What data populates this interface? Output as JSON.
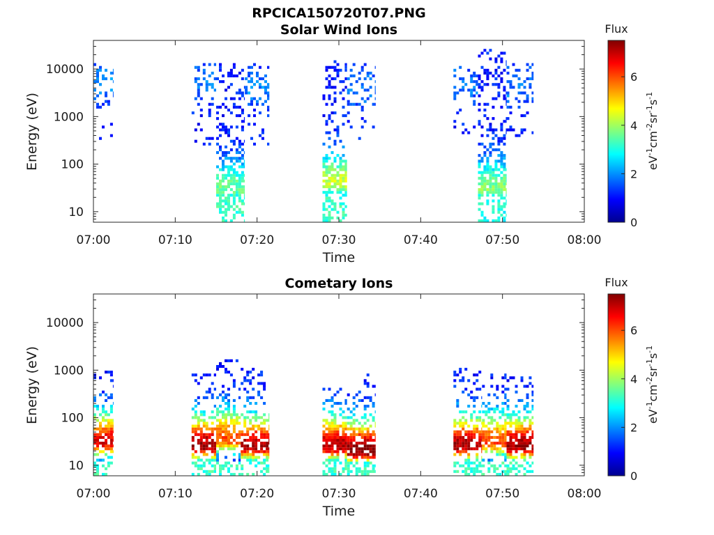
{
  "figure": {
    "title": "RPCICA150720T07.PNG"
  },
  "colorbar": {
    "label": "Flux",
    "unit_base": "eV",
    "unit_exp1": "-1",
    "unit_cm": "cm",
    "unit_exp2": "-2",
    "unit_sr": "sr",
    "unit_exp3": "-1",
    "unit_s": "s",
    "unit_exp4": "-1",
    "ticks": [
      "0",
      "2",
      "4",
      "6"
    ],
    "range": [
      0,
      7.5
    ],
    "colormap": "jet"
  },
  "chart_data": [
    {
      "type": "heatmap",
      "title": "Solar Wind Ions",
      "xlabel": "Time",
      "ylabel": "Energy (eV)",
      "x_ticks": [
        "07:00",
        "07:10",
        "07:20",
        "07:30",
        "07:40",
        "07:50",
        "08:00"
      ],
      "x_range_min": [
        0,
        60
      ],
      "y_ticks": [
        "10",
        "100",
        "1000",
        "10000"
      ],
      "y_scale": "log",
      "y_range": [
        6,
        40000
      ],
      "z_range": [
        0,
        7.5
      ],
      "bursts": [
        {
          "start_min": 0.0,
          "end_min": 2.4,
          "emin": 250,
          "emax": 16000,
          "peak_energy": 4000,
          "peak_flux": 2.0,
          "low_emax": null,
          "low_flux": 0,
          "density": 0.35
        },
        {
          "start_min": 12.0,
          "end_min": 15.0,
          "emin": 250,
          "emax": 13000,
          "peak_energy": 4000,
          "peak_flux": 1.8,
          "low_emax": null,
          "low_flux": 0,
          "density": 0.35
        },
        {
          "start_min": 15.0,
          "end_min": 18.5,
          "emin": 6,
          "emax": 14000,
          "peak_energy": 30,
          "peak_flux": 3.6,
          "low_emax": 20,
          "low_flux": 3.2,
          "density": 0.85
        },
        {
          "start_min": 18.5,
          "end_min": 21.5,
          "emin": 250,
          "emax": 13000,
          "peak_energy": 3000,
          "peak_flux": 1.9,
          "low_emax": null,
          "low_flux": 0,
          "density": 0.35
        },
        {
          "start_min": 28.0,
          "end_min": 31.0,
          "emin": 6,
          "emax": 15000,
          "peak_energy": 40,
          "peak_flux": 4.3,
          "low_emax": 20,
          "low_flux": 3.2,
          "density": 0.85
        },
        {
          "start_min": 31.0,
          "end_min": 34.5,
          "emin": 300,
          "emax": 13000,
          "peak_energy": 3000,
          "peak_flux": 1.8,
          "low_emax": null,
          "low_flux": 0,
          "density": 0.35
        },
        {
          "start_min": 44.0,
          "end_min": 47.0,
          "emin": 400,
          "emax": 14000,
          "peak_energy": 4000,
          "peak_flux": 1.8,
          "low_emax": null,
          "low_flux": 0,
          "density": 0.35
        },
        {
          "start_min": 47.0,
          "end_min": 50.5,
          "emin": 6,
          "emax": 25000,
          "peak_energy": 30,
          "peak_flux": 3.8,
          "low_emax": 20,
          "low_flux": 3.0,
          "density": 0.85
        },
        {
          "start_min": 50.5,
          "end_min": 53.8,
          "emin": 300,
          "emax": 13000,
          "peak_energy": 3000,
          "peak_flux": 1.8,
          "low_emax": null,
          "low_flux": 0,
          "density": 0.35
        }
      ]
    },
    {
      "type": "heatmap",
      "title": "Cometary Ions",
      "xlabel": "Time",
      "ylabel": "Energy (eV)",
      "x_ticks": [
        "07:00",
        "07:10",
        "07:20",
        "07:30",
        "07:40",
        "07:50",
        "08:00"
      ],
      "x_range_min": [
        0,
        60
      ],
      "y_ticks": [
        "10",
        "100",
        "1000",
        "10000"
      ],
      "y_scale": "log",
      "y_range": [
        6,
        40000
      ],
      "z_range": [
        0,
        7.5
      ],
      "bursts": [
        {
          "start_min": 0.0,
          "end_min": 2.4,
          "emin": 6,
          "emax": 1000,
          "peak_energy": 30,
          "peak_flux": 6.8,
          "low_emax": 12,
          "low_flux": 3.2,
          "density": 0.75
        },
        {
          "start_min": 12.0,
          "end_min": 15.0,
          "emin": 6,
          "emax": 800,
          "peak_energy": 25,
          "peak_flux": 7.3,
          "low_emax": 12,
          "low_flux": 3.2,
          "density": 0.75
        },
        {
          "start_min": 15.0,
          "end_min": 18.0,
          "emin": 6,
          "emax": 1800,
          "peak_energy": 35,
          "peak_flux": 6.0,
          "low_emax": 12,
          "low_flux": 3.2,
          "density": 0.75
        },
        {
          "start_min": 18.0,
          "end_min": 21.5,
          "emin": 6,
          "emax": 1100,
          "peak_energy": 25,
          "peak_flux": 7.2,
          "low_emax": 12,
          "low_flux": 3.2,
          "density": 0.75
        },
        {
          "start_min": 28.0,
          "end_min": 31.0,
          "emin": 6,
          "emax": 450,
          "peak_energy": 25,
          "peak_flux": 7.2,
          "low_emax": 12,
          "low_flux": 3.2,
          "density": 0.85
        },
        {
          "start_min": 31.0,
          "end_min": 34.5,
          "emin": 6,
          "emax": 900,
          "peak_energy": 20,
          "peak_flux": 7.5,
          "low_emax": 12,
          "low_flux": 3.2,
          "density": 0.8
        },
        {
          "start_min": 44.0,
          "end_min": 47.5,
          "emin": 6,
          "emax": 1100,
          "peak_energy": 25,
          "peak_flux": 7.2,
          "low_emax": 12,
          "low_flux": 3.2,
          "density": 0.8
        },
        {
          "start_min": 47.5,
          "end_min": 50.5,
          "emin": 6,
          "emax": 900,
          "peak_energy": 30,
          "peak_flux": 6.0,
          "low_emax": 12,
          "low_flux": 3.2,
          "density": 0.8
        },
        {
          "start_min": 50.5,
          "end_min": 53.8,
          "emin": 6,
          "emax": 700,
          "peak_energy": 25,
          "peak_flux": 7.3,
          "low_emax": 12,
          "low_flux": 3.2,
          "density": 0.8
        }
      ]
    }
  ]
}
